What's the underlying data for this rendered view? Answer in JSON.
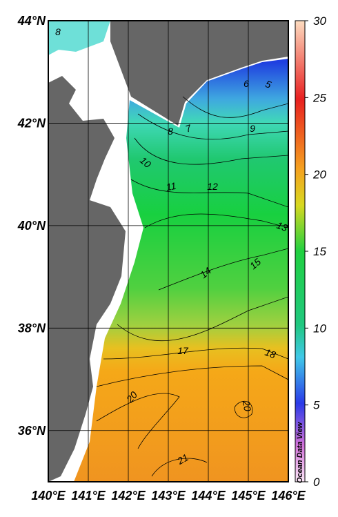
{
  "map": {
    "lon_lim": [
      140,
      146
    ],
    "lat_lim": [
      35,
      44
    ],
    "lon_ticks": [
      {
        "value": 140,
        "label": "140°E"
      },
      {
        "value": 141,
        "label": "141°E"
      },
      {
        "value": 142,
        "label": "142°E"
      },
      {
        "value": 143,
        "label": "143°E"
      },
      {
        "value": 144,
        "label": "144°E"
      },
      {
        "value": 145,
        "label": "145°E"
      },
      {
        "value": 146,
        "label": "146°E"
      }
    ],
    "lat_ticks": [
      {
        "value": 36,
        "label": "36°N"
      },
      {
        "value": 38,
        "label": "38°N"
      },
      {
        "value": 40,
        "label": "40°N"
      },
      {
        "value": 42,
        "label": "42°N"
      },
      {
        "value": 44,
        "label": "44°N"
      }
    ],
    "contour_labels": [
      8,
      8,
      7,
      6,
      5,
      9,
      10,
      11,
      12,
      13,
      14,
      15,
      17,
      18,
      20,
      20,
      21
    ],
    "colorbar": {
      "lim": [
        0,
        30
      ],
      "ticks": [
        0,
        5,
        10,
        15,
        20,
        25,
        30
      ]
    },
    "watermark": "Ocean Data View"
  }
}
